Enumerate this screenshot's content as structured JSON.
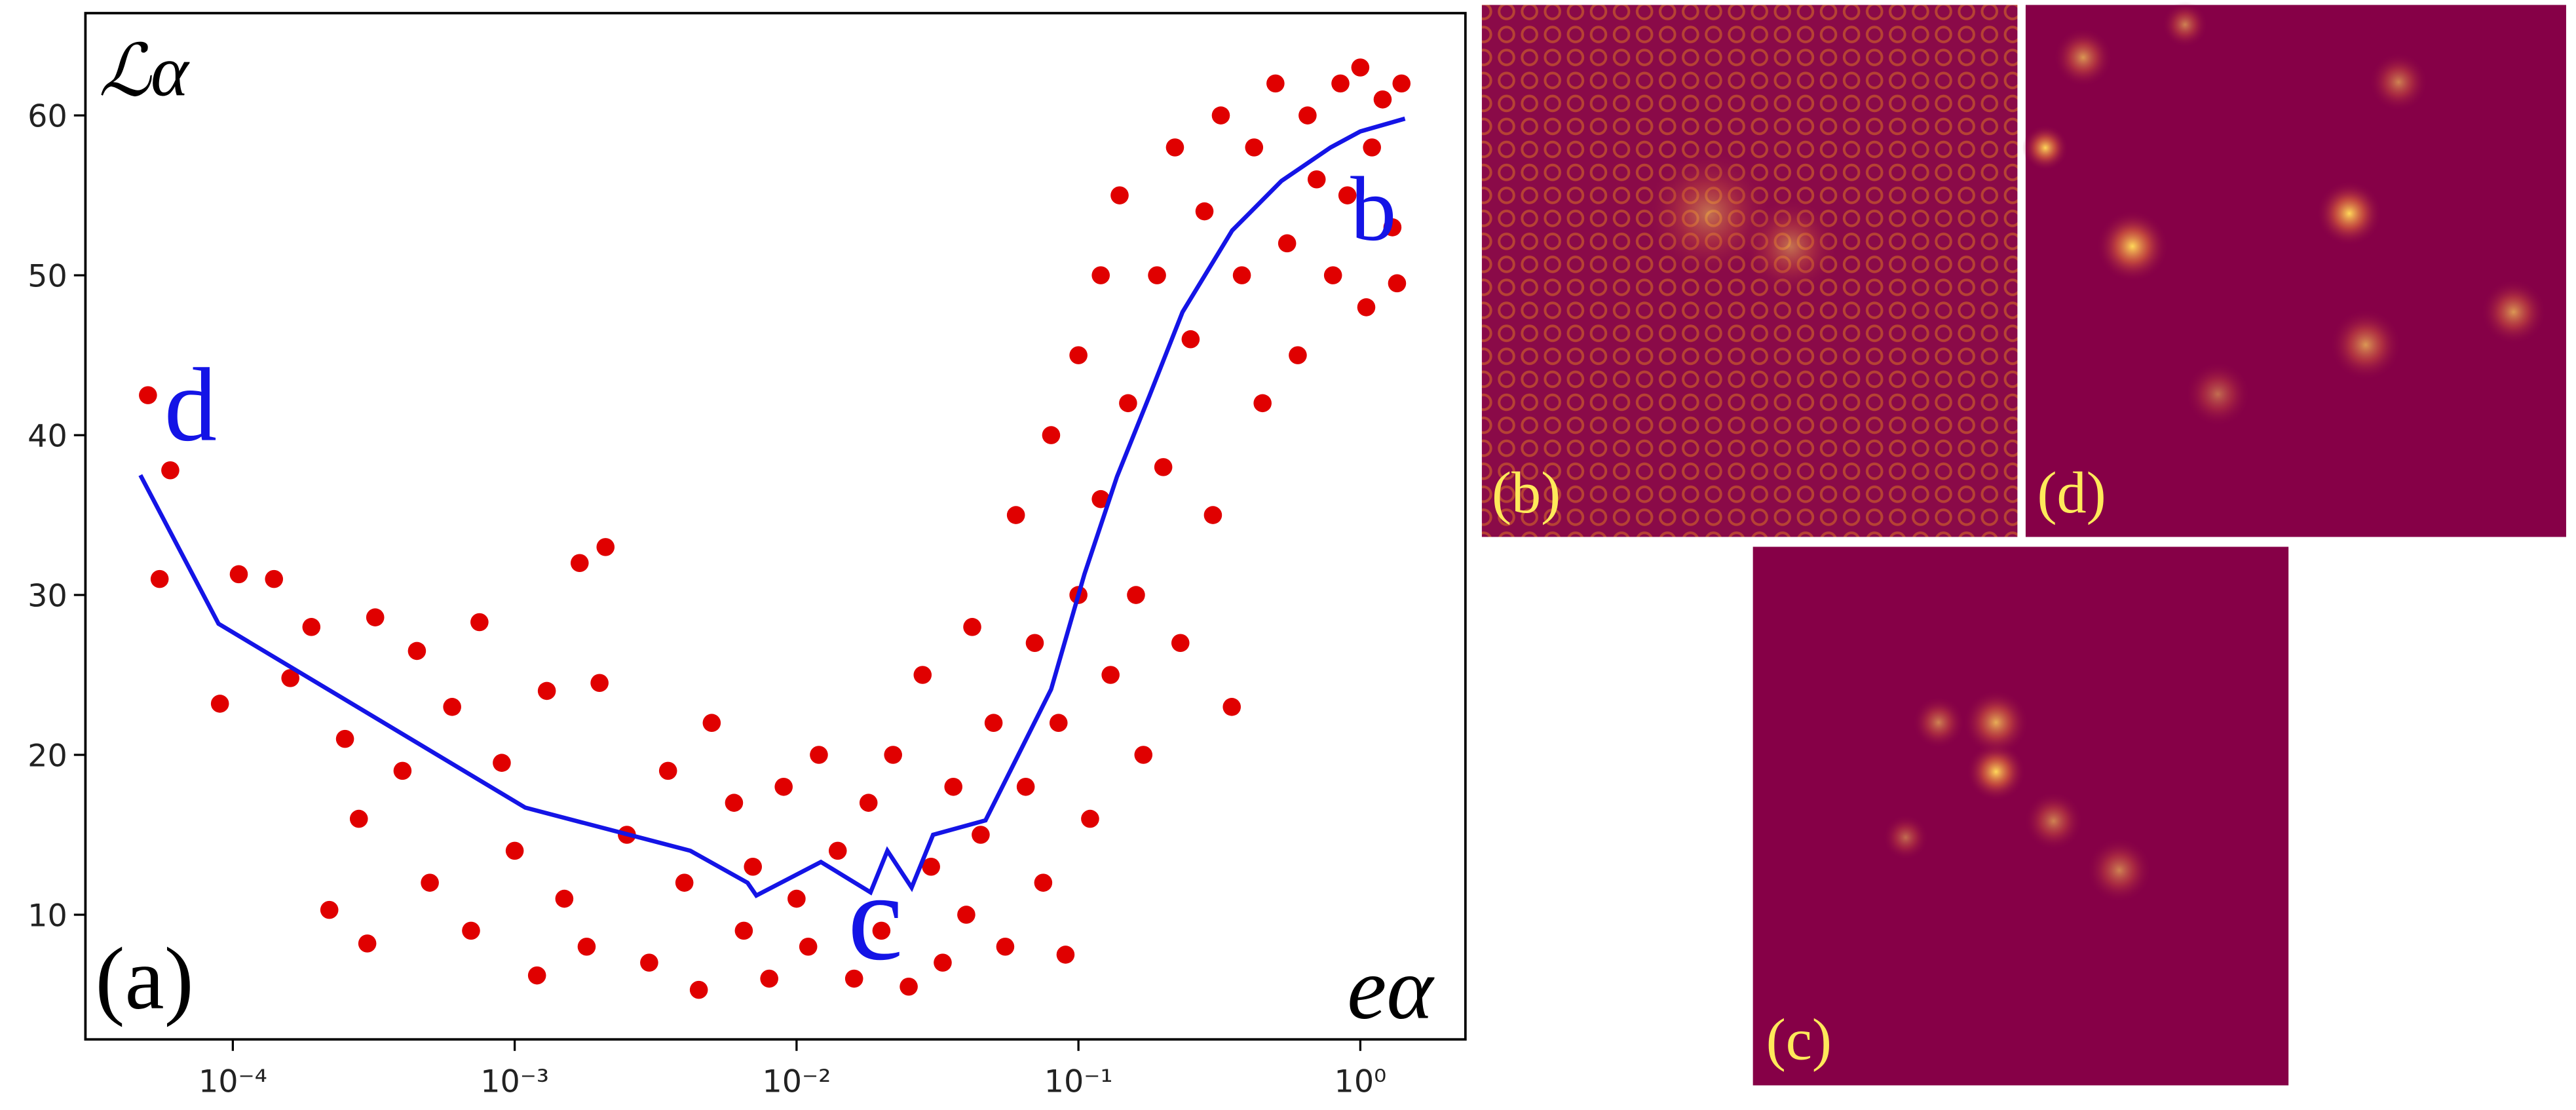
{
  "chart_data": {
    "type": "scatter",
    "log_x": true,
    "ylabel": "ℒα",
    "xlabel": "eα",
    "panel_label": "(a)",
    "annotations": [
      "d",
      "b",
      "c"
    ],
    "xlim": [
      3e-05,
      2.36
    ],
    "ylim": [
      2.2,
      66.4
    ],
    "xticks": [
      {
        "value": 0.0001,
        "label": "10⁻⁴"
      },
      {
        "value": 0.001,
        "label": "10⁻³"
      },
      {
        "value": 0.01,
        "label": "10⁻²"
      },
      {
        "value": 0.1,
        "label": "10⁻¹"
      },
      {
        "value": 1,
        "label": "10⁰"
      }
    ],
    "yticks": [
      10,
      20,
      30,
      40,
      50,
      60
    ],
    "series": [
      {
        "color": "#e00000",
        "x": [
          5e-05,
          6e-05,
          5.5e-05,
          9e-05,
          0.000105,
          0.00014,
          0.00016,
          0.00019,
          0.00022,
          0.00025,
          0.00028,
          0.0003,
          0.00032,
          0.0004,
          0.00045,
          0.0005,
          0.0006,
          0.0007,
          0.00075,
          0.0009,
          0.001,
          0.0012,
          0.0013,
          0.0015,
          0.0017,
          0.0018,
          0.002,
          0.0021,
          0.0025,
          0.003,
          0.0035,
          0.004,
          0.0045,
          0.005,
          0.006,
          0.0065,
          0.007,
          0.008,
          0.009,
          0.01,
          0.011,
          0.012,
          0.014,
          0.016,
          0.018,
          0.02,
          0.022,
          0.025,
          0.028,
          0.03,
          0.033,
          0.036,
          0.04,
          0.042,
          0.045,
          0.05,
          0.055,
          0.06,
          0.065,
          0.07,
          0.075,
          0.08,
          0.085,
          0.09,
          0.1,
          0.1,
          0.11,
          0.12,
          0.12,
          0.13,
          0.14,
          0.15,
          0.16,
          0.17,
          0.19,
          0.2,
          0.22,
          0.23,
          0.25,
          0.28,
          0.3,
          0.32,
          0.35,
          0.38,
          0.42,
          0.45,
          0.5,
          0.55,
          0.6,
          0.65,
          0.7,
          0.8,
          0.85,
          0.9,
          1.0,
          1.05,
          1.1,
          1.2,
          1.3,
          1.35,
          1.4
        ],
        "values": [
          42.5,
          37.8,
          31,
          23.2,
          31.3,
          31,
          24.8,
          28,
          10.3,
          21,
          16,
          8.2,
          28.6,
          19,
          26.5,
          12,
          23,
          9,
          28.3,
          19.5,
          14,
          6.2,
          24,
          11,
          32,
          8,
          24.5,
          33,
          15,
          7,
          19,
          12,
          5.3,
          22,
          17,
          9,
          13,
          6,
          18,
          11,
          8,
          20,
          14,
          6,
          17,
          9,
          20,
          5.5,
          25,
          13,
          7,
          18,
          10,
          28,
          15,
          22,
          8,
          35,
          18,
          27,
          12,
          40,
          22,
          7.5,
          45,
          30,
          16,
          50,
          36,
          25,
          55,
          42,
          30,
          20,
          50,
          38,
          58,
          27,
          46,
          54,
          35,
          60,
          23,
          50,
          58,
          42,
          62,
          52,
          45,
          60,
          56,
          50,
          62,
          55,
          63,
          48,
          58,
          61,
          53,
          49.5,
          62
        ]
      },
      {
        "type": "line",
        "color": "#1414e6",
        "x": [
          4.7e-05,
          8.9e-05,
          0.00109,
          0.0042,
          0.0067,
          0.0072,
          0.0122,
          0.0183,
          0.021,
          0.0256,
          0.0305,
          0.0468,
          0.0612,
          0.08,
          0.105,
          0.137,
          0.179,
          0.234,
          0.351,
          0.525,
          0.785,
          1.0,
          1.44
        ],
        "values": [
          37.5,
          28.2,
          16.7,
          14.0,
          12.0,
          11.2,
          13.3,
          11.4,
          14.0,
          11.7,
          15.0,
          15.9,
          20.0,
          24.1,
          31.3,
          37.4,
          42.5,
          47.7,
          52.8,
          55.9,
          58.0,
          59.0,
          59.8
        ]
      }
    ]
  },
  "panels": [
    {
      "label": "(b)"
    },
    {
      "label": "(d)"
    },
    {
      "label": "(c)"
    }
  ]
}
